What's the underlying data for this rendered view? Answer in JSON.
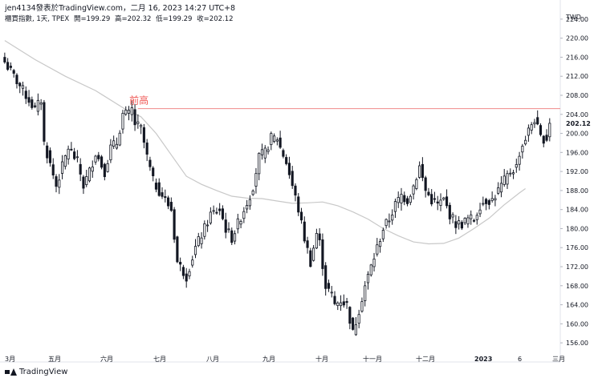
{
  "header": {
    "text": "jen4134發表於TradingView.com，二月 16, 2023 14:27 UTC+8"
  },
  "symbol": {
    "name": "櫃買指數, 1天, TPEX",
    "open": "開=199.29",
    "high": "高=202.32",
    "low": "低=199.29",
    "close": "收=202.12"
  },
  "brand": {
    "text": "TradingView"
  },
  "colors": {
    "candle": "#131722",
    "ma": "#c8c8c8",
    "level": "#f08a8a",
    "level_label": "#ef5350",
    "grid_border": "#e0e3eb"
  },
  "chart_data": {
    "type": "candlestick",
    "currency": "TWD",
    "last_price": "202.12",
    "ylim": [
      154,
      226
    ],
    "y_ticks": [
      "156.00",
      "160.00",
      "164.00",
      "168.00",
      "172.00",
      "176.00",
      "180.00",
      "184.00",
      "188.00",
      "192.00",
      "196.00",
      "200.00",
      "204.00",
      "208.00",
      "212.00",
      "216.00",
      "220.00",
      "224.00"
    ],
    "x_ticks": [
      "3月",
      "五月",
      "六月",
      "七月",
      "八月",
      "九月",
      "十月",
      "十一月",
      "十二月",
      "2023",
      "6",
      "三月"
    ],
    "annotation": {
      "label": "前高",
      "price": 205.2
    },
    "close_path": [
      [
        0,
        215
      ],
      [
        4,
        211
      ],
      [
        10,
        205
      ],
      [
        12,
        207
      ],
      [
        13,
        198
      ],
      [
        17,
        189
      ],
      [
        21,
        197
      ],
      [
        24,
        194
      ],
      [
        26,
        189
      ],
      [
        28,
        192
      ],
      [
        30,
        196
      ],
      [
        33,
        192
      ],
      [
        35,
        197
      ],
      [
        37,
        198
      ],
      [
        39,
        204
      ],
      [
        41,
        204
      ],
      [
        42,
        205
      ],
      [
        43,
        202
      ],
      [
        45,
        201
      ],
      [
        47,
        195
      ],
      [
        49,
        190
      ],
      [
        51,
        188
      ],
      [
        53,
        186
      ],
      [
        55,
        184
      ],
      [
        57,
        173
      ],
      [
        60,
        170
      ],
      [
        63,
        176
      ],
      [
        66,
        180
      ],
      [
        68,
        183
      ],
      [
        71,
        184
      ],
      [
        73,
        180
      ],
      [
        75,
        178
      ],
      [
        77,
        181
      ],
      [
        79,
        184
      ],
      [
        81,
        187
      ],
      [
        82,
        189
      ],
      [
        84,
        195
      ],
      [
        86,
        196
      ],
      [
        88,
        199
      ],
      [
        90,
        199
      ],
      [
        91,
        197
      ],
      [
        93,
        194
      ],
      [
        95,
        189
      ],
      [
        97,
        184
      ],
      [
        99,
        178
      ],
      [
        101,
        173
      ],
      [
        103,
        179
      ],
      [
        104,
        177
      ],
      [
        106,
        168
      ],
      [
        108,
        166
      ],
      [
        109,
        164
      ],
      [
        111,
        165
      ],
      [
        113,
        164
      ],
      [
        115,
        158
      ],
      [
        117,
        163
      ],
      [
        119,
        168
      ],
      [
        121,
        172
      ],
      [
        123,
        176
      ],
      [
        125,
        180
      ],
      [
        127,
        182
      ],
      [
        129,
        185
      ],
      [
        131,
        187
      ],
      [
        133,
        186
      ],
      [
        135,
        189
      ],
      [
        137,
        193
      ],
      [
        139,
        188
      ],
      [
        141,
        186
      ],
      [
        143,
        185
      ],
      [
        145,
        186
      ],
      [
        147,
        183
      ],
      [
        149,
        181
      ],
      [
        151,
        181
      ],
      [
        153,
        182
      ],
      [
        155,
        182
      ],
      [
        157,
        185
      ],
      [
        159,
        186
      ],
      [
        161,
        186
      ],
      [
        163,
        188
      ],
      [
        165,
        190
      ],
      [
        167,
        192
      ],
      [
        169,
        193
      ],
      [
        170,
        196
      ],
      [
        172,
        199
      ],
      [
        174,
        202
      ],
      [
        175,
        203
      ],
      [
        176,
        201
      ],
      [
        177,
        199
      ],
      [
        179,
        199
      ],
      [
        180,
        202
      ]
    ],
    "ma_path": [
      [
        0,
        219.5
      ],
      [
        10,
        215.5
      ],
      [
        20,
        212
      ],
      [
        30,
        209
      ],
      [
        40,
        205
      ],
      [
        45,
        203.5
      ],
      [
        50,
        200
      ],
      [
        55,
        195.5
      ],
      [
        60,
        191
      ],
      [
        65,
        189.3
      ],
      [
        70,
        188
      ],
      [
        75,
        186.8
      ],
      [
        80,
        186.4
      ],
      [
        85,
        186.3
      ],
      [
        90,
        185.8
      ],
      [
        95,
        185.3
      ],
      [
        100,
        185.4
      ],
      [
        105,
        185.6
      ],
      [
        110,
        184.8
      ],
      [
        115,
        183.5
      ],
      [
        120,
        182
      ],
      [
        125,
        180
      ],
      [
        130,
        178.5
      ],
      [
        135,
        177.2
      ],
      [
        140,
        176.8
      ],
      [
        145,
        176.9
      ],
      [
        150,
        178
      ],
      [
        155,
        180
      ],
      [
        160,
        182.2
      ],
      [
        165,
        185
      ],
      [
        170,
        187.5
      ],
      [
        172,
        188.4
      ]
    ],
    "n_bars": 181
  }
}
